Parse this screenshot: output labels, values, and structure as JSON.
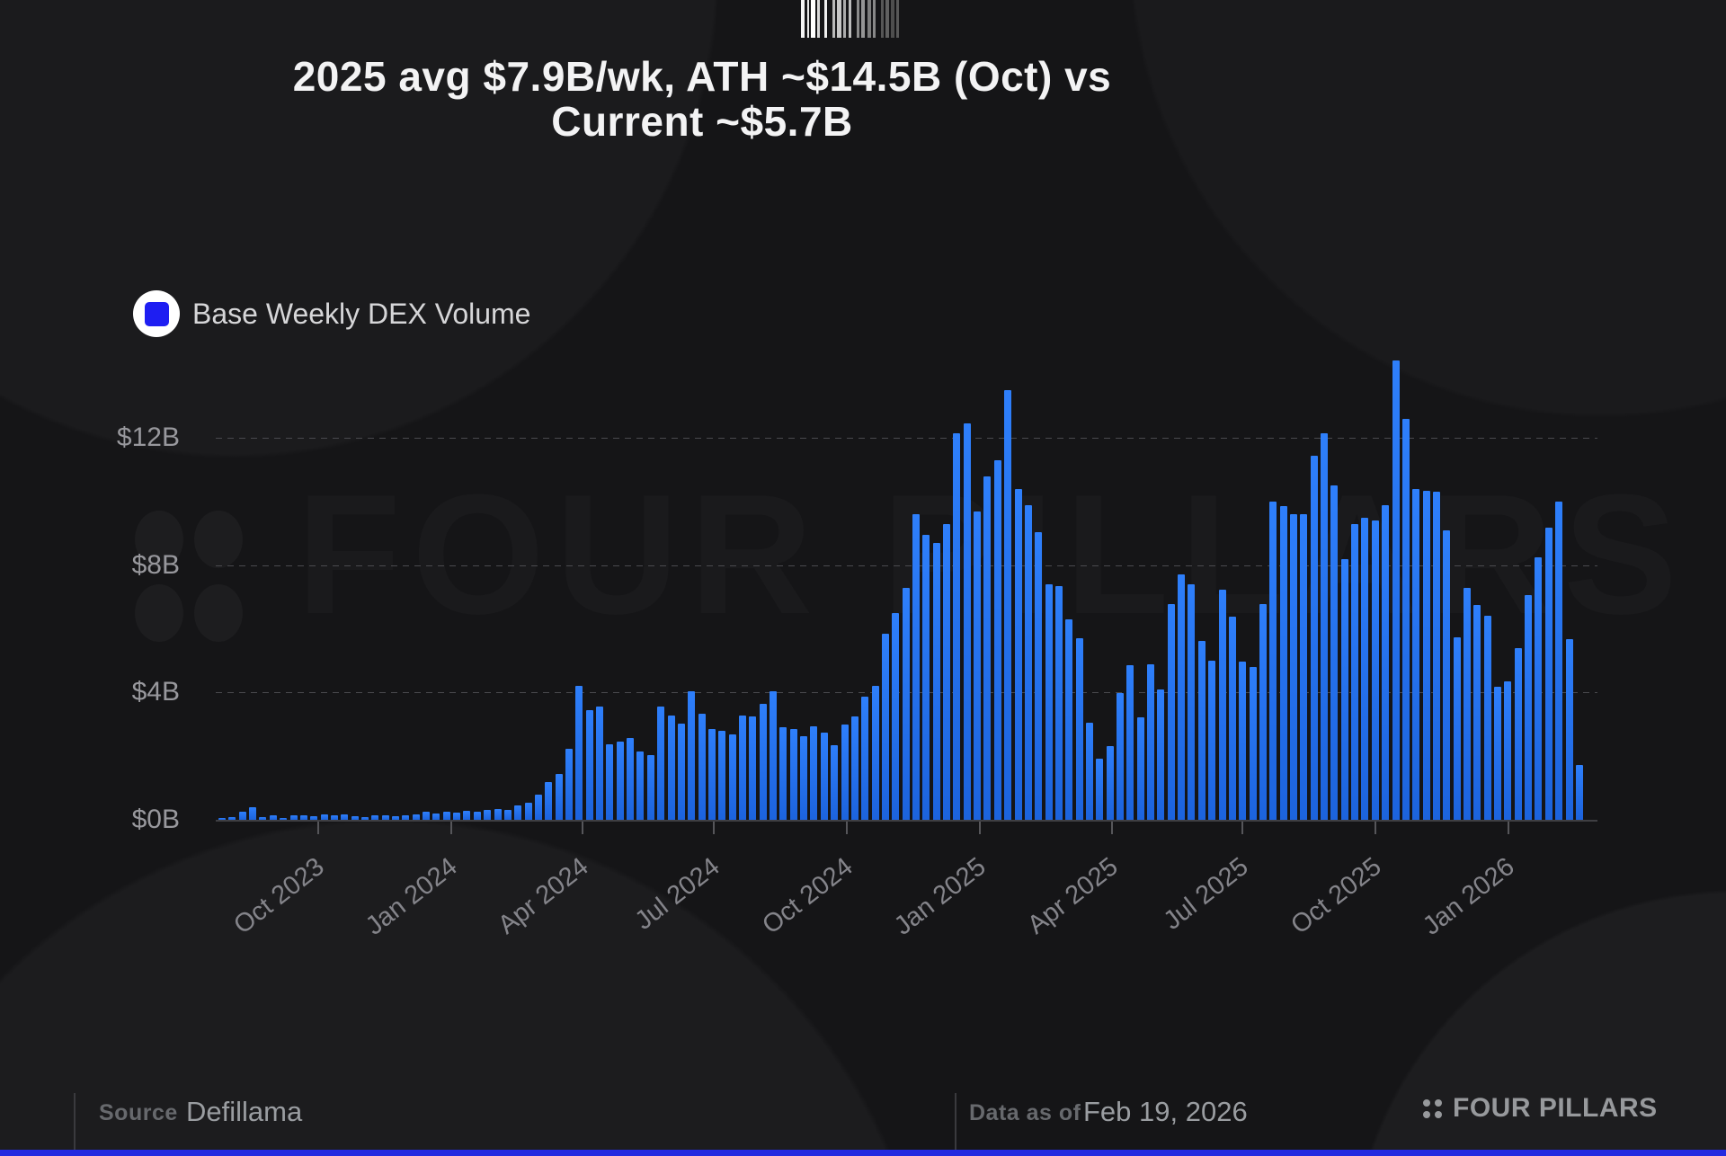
{
  "title": {
    "line1": "2025 avg $7.9B/wk, ATH ~$14.5B (Oct) vs",
    "line2": "Current ~$5.7B"
  },
  "legend": {
    "label": "Base Weekly DEX Volume",
    "swatch_color": "#1e1ef2"
  },
  "watermark": {
    "text": "FOUR PILLARS"
  },
  "footer": {
    "source_label": "Source",
    "source_value": "Defillama",
    "asof_label": "Data as of",
    "asof_value": "Feb 19, 2026",
    "brand": "FOUR PILLARS"
  },
  "chart_data": {
    "type": "bar",
    "title": "2025 avg $7.9B/wk, ATH ~$14.5B (Oct) vs Current ~$5.7B",
    "series_name": "Base Weekly DEX Volume",
    "unit": "USD billions per week",
    "bar_color": "#2273f0",
    "grid": "horizontal-dashed",
    "legend_position": "top-left",
    "ylim": [
      0,
      15.5
    ],
    "y_ticks": [
      {
        "label": "$0B",
        "value": 0
      },
      {
        "label": "$4B",
        "value": 4
      },
      {
        "label": "$8B",
        "value": 8
      },
      {
        "label": "$12B",
        "value": 12
      }
    ],
    "x_ticks": [
      {
        "label": "Oct 2023",
        "index": 9.3
      },
      {
        "label": "Jan 2024",
        "index": 22.4
      },
      {
        "label": "Apr 2024",
        "index": 35.2
      },
      {
        "label": "Jul 2024",
        "index": 48.1
      },
      {
        "label": "Oct 2024",
        "index": 61.1
      },
      {
        "label": "Jan 2025",
        "index": 74.2
      },
      {
        "label": "Apr 2025",
        "index": 87.1
      },
      {
        "label": "Jul 2025",
        "index": 99.9
      },
      {
        "label": "Oct 2025",
        "index": 112.9
      },
      {
        "label": "Jan 2026",
        "index": 126.0
      }
    ],
    "values": [
      0.05,
      0.1,
      0.25,
      0.4,
      0.08,
      0.15,
      0.06,
      0.13,
      0.15,
      0.12,
      0.18,
      0.14,
      0.16,
      0.12,
      0.1,
      0.13,
      0.15,
      0.12,
      0.14,
      0.18,
      0.25,
      0.2,
      0.25,
      0.22,
      0.28,
      0.25,
      0.3,
      0.35,
      0.3,
      0.45,
      0.55,
      0.8,
      1.2,
      1.43,
      2.23,
      4.21,
      3.44,
      3.57,
      2.37,
      2.47,
      2.58,
      2.14,
      2.04,
      3.55,
      3.27,
      3.01,
      4.04,
      3.33,
      2.86,
      2.8,
      2.68,
      3.29,
      3.25,
      3.65,
      4.04,
      2.91,
      2.85,
      2.64,
      2.94,
      2.75,
      2.35,
      2.99,
      3.25,
      3.86,
      4.2,
      5.85,
      6.5,
      7.3,
      9.6,
      8.97,
      8.7,
      9.3,
      12.16,
      12.45,
      9.7,
      10.8,
      11.3,
      13.5,
      10.4,
      9.9,
      9.05,
      7.4,
      7.35,
      6.3,
      5.7,
      3.05,
      1.92,
      2.33,
      3.99,
      4.86,
      3.21,
      4.88,
      4.1,
      6.79,
      7.71,
      7.4,
      5.61,
      5.0,
      7.24,
      6.39,
      4.98,
      4.81,
      6.79,
      10.0,
      9.85,
      9.6,
      9.6,
      11.45,
      12.15,
      10.5,
      8.2,
      9.3,
      9.5,
      9.4,
      9.9,
      14.45,
      12.6,
      10.4,
      10.35,
      10.3,
      9.1,
      5.74,
      7.3,
      6.75,
      6.4,
      4.19,
      4.35,
      5.39,
      7.06,
      8.24,
      9.18,
      10.0,
      5.68,
      1.72
    ]
  }
}
